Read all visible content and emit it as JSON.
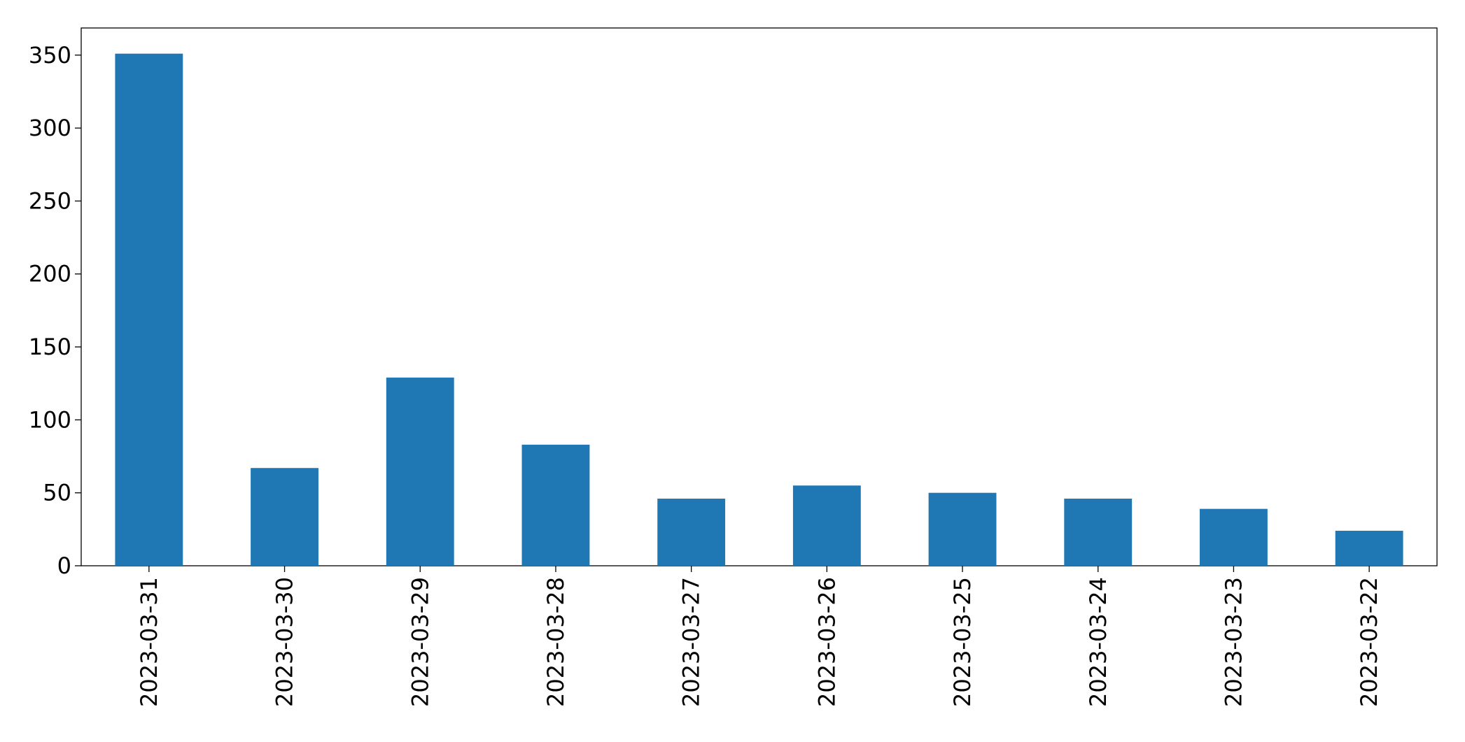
{
  "chart_data": {
    "type": "bar",
    "categories": [
      "2023-03-31",
      "2023-03-30",
      "2023-03-29",
      "2023-03-28",
      "2023-03-27",
      "2023-03-26",
      "2023-03-25",
      "2023-03-24",
      "2023-03-23",
      "2023-03-22"
    ],
    "values": [
      351,
      67,
      129,
      83,
      46,
      55,
      50,
      46,
      39,
      24
    ],
    "color": "#1f77b4",
    "ylim": [
      0,
      368.6
    ],
    "yticks": [
      0,
      50,
      100,
      150,
      200,
      250,
      300,
      350
    ],
    "grid": false
  }
}
